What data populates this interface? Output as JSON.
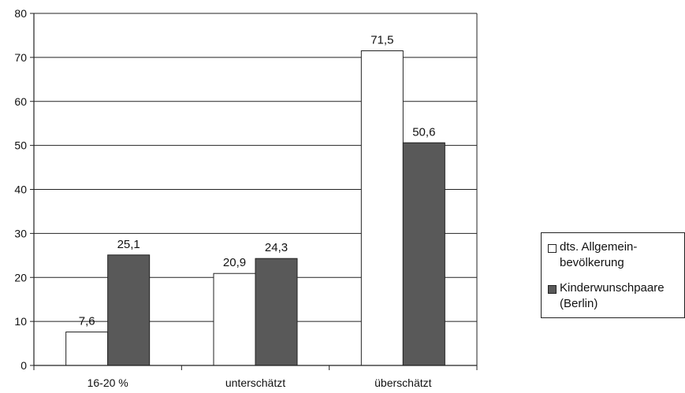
{
  "chart_data": {
    "type": "bar",
    "categories": [
      "16-20 %",
      "unterschätzt",
      "überschätzt"
    ],
    "series": [
      {
        "name": "dts. Allgemein-\nbevölkerung",
        "values": [
          7.6,
          20.9,
          71.5
        ],
        "labels": [
          "7,6",
          "20,9",
          "71,5"
        ],
        "color": "#ffffff"
      },
      {
        "name": "Kinderwunschpaare\n(Berlin)",
        "values": [
          25.1,
          24.3,
          50.6
        ],
        "labels": [
          "25,1",
          "24,3",
          "50,6"
        ],
        "color": "#595959"
      }
    ],
    "ylim": [
      0,
      80
    ],
    "yticks": [
      "0",
      "10",
      "20",
      "30",
      "40",
      "50",
      "60",
      "70",
      "80"
    ],
    "grid": true,
    "legend": "right"
  }
}
